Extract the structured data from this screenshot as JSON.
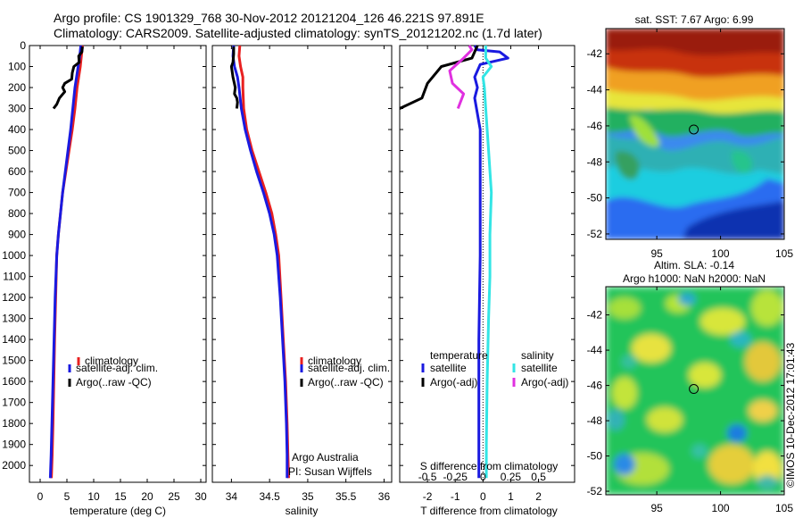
{
  "header": {
    "line1": "Argo profile: CS 1901329_768 30-Nov-2012 20121204_126 46.221S 97.891E",
    "line2": "Climatology: CARS2009. Satellite-adjusted climatology: synTS_20121202.nc (1.7d later)"
  },
  "colors": {
    "climatology": "#e82020",
    "satellite": "#1a1ae0",
    "argo": "#000000",
    "sal_satellite": "#33e5e5",
    "sal_argo": "#e030e0"
  },
  "chart_data": [
    {
      "type": "line",
      "id": "temperature",
      "xlabel": "temperature (deg C)",
      "ylabel": "",
      "xlim": [
        -2,
        31
      ],
      "ylim": [
        2080,
        0
      ],
      "xticks": [
        0,
        5,
        10,
        15,
        20,
        25,
        30
      ],
      "xtick_labels": [
        "0",
        "5",
        "10",
        "15",
        "20",
        "25",
        "30"
      ],
      "yticks": [
        0,
        100,
        200,
        300,
        400,
        500,
        600,
        700,
        800,
        900,
        1000,
        1100,
        1200,
        1300,
        1400,
        1500,
        1600,
        1700,
        1800,
        1900,
        2000
      ],
      "ytick_labels": [
        "0",
        "100",
        "200",
        "300",
        "400",
        "500",
        "600",
        "700",
        "800",
        "900",
        "1000",
        "1100",
        "1200",
        "1300",
        "1400",
        "1500",
        "1600",
        "1700",
        "1800",
        "1900",
        "2000"
      ],
      "legend": [
        "climatology",
        "satellite-adj. clim.",
        "Argo(..raw -QC)"
      ],
      "series": [
        {
          "name": "climatology",
          "color_key": "climatology",
          "x": [
            7.9,
            7.7,
            7.5,
            7.2,
            6.9,
            6.5,
            6.0,
            5.4,
            4.8,
            4.2,
            3.8,
            3.4,
            3.1,
            2.9,
            2.7,
            2.55,
            2.4,
            2.25,
            2.1
          ],
          "depth": [
            0,
            50,
            100,
            150,
            200,
            300,
            400,
            500,
            600,
            700,
            800,
            900,
            1000,
            1200,
            1400,
            1600,
            1800,
            1950,
            2060
          ]
        },
        {
          "name": "satellite-adj. clim.",
          "color_key": "satellite",
          "x": [
            7.6,
            7.4,
            7.1,
            6.8,
            6.5,
            6.1,
            5.7,
            5.2,
            4.7,
            4.2,
            3.8,
            3.4,
            3.1,
            2.8,
            2.6,
            2.4,
            2.2,
            2.05,
            1.9
          ],
          "depth": [
            0,
            50,
            100,
            150,
            200,
            300,
            400,
            500,
            600,
            700,
            800,
            900,
            1000,
            1200,
            1400,
            1600,
            1800,
            1950,
            2060
          ]
        },
        {
          "name": "Argo(..raw -QC)",
          "color_key": "argo",
          "x": [
            7.9,
            7.8,
            7.2,
            7.3,
            6.3,
            6.0,
            5.9,
            4.6,
            4.2,
            4.6,
            3.6,
            3.1,
            2.5
          ],
          "depth": [
            5,
            30,
            50,
            80,
            100,
            130,
            160,
            180,
            200,
            220,
            250,
            280,
            300
          ]
        }
      ],
      "annotations": []
    },
    {
      "type": "line",
      "id": "salinity",
      "xlabel": "salinity",
      "ylabel": "",
      "xlim": [
        33.75,
        36.1
      ],
      "ylim": [
        2080,
        0
      ],
      "xticks": [
        34,
        34.5,
        35,
        35.5,
        36
      ],
      "xtick_labels": [
        "34",
        "34.5",
        "35",
        "35.5",
        "36"
      ],
      "legend": [
        "climatology",
        "satellite-adj. clim.",
        "Argo(..raw -QC)"
      ],
      "series": [
        {
          "name": "climatology",
          "color_key": "climatology",
          "x": [
            34.11,
            34.1,
            34.12,
            34.15,
            34.15,
            34.16,
            34.2,
            34.27,
            34.36,
            34.45,
            34.53,
            34.58,
            34.62,
            34.65,
            34.68,
            34.71,
            34.73,
            34.74,
            34.75
          ],
          "depth": [
            0,
            50,
            100,
            150,
            200,
            300,
            400,
            500,
            600,
            700,
            800,
            900,
            1000,
            1200,
            1400,
            1600,
            1800,
            1950,
            2060
          ]
        },
        {
          "name": "satellite-adj. clim.",
          "color_key": "satellite",
          "x": [
            34.03,
            34.02,
            34.04,
            34.08,
            34.1,
            34.13,
            34.18,
            34.25,
            34.33,
            34.42,
            34.5,
            34.56,
            34.6,
            34.64,
            34.67,
            34.7,
            34.72,
            34.73,
            34.73
          ],
          "depth": [
            0,
            50,
            100,
            150,
            200,
            300,
            400,
            500,
            600,
            700,
            800,
            900,
            1000,
            1200,
            1400,
            1600,
            1800,
            1950,
            2060
          ]
        },
        {
          "name": "Argo(..raw -QC)",
          "color_key": "argo",
          "x": [
            34.03,
            34.03,
            34.02,
            34.0,
            34.02,
            34.05,
            34.04,
            34.07,
            34.08,
            34.07
          ],
          "depth": [
            5,
            40,
            80,
            100,
            150,
            200,
            230,
            250,
            270,
            300
          ]
        }
      ],
      "annotations": [
        "Argo Australia",
        "PI: Susan Wijffels"
      ]
    },
    {
      "type": "line",
      "id": "difference",
      "xlabel": "T difference from climatology",
      "top_xlabel": "S difference from climatology",
      "xlim": [
        -3,
        3.3
      ],
      "ylim": [
        2080,
        0
      ],
      "xticks": [
        -2,
        -1,
        0,
        1,
        2
      ],
      "xtick_labels": [
        "-2",
        "-1",
        "0",
        "1",
        "2"
      ],
      "sxtick_labels": [
        "-0.5",
        "-0.25",
        "0",
        "0.25",
        "0.5"
      ],
      "sxtick_positions": [
        -2,
        -1,
        0,
        1,
        2
      ],
      "legend_headers": [
        "temperature",
        "salinity"
      ],
      "legend": [
        "satellite",
        "Argo(-adj)",
        "satellite",
        "Argo(-adj)"
      ],
      "series": [
        {
          "name": "T satellite",
          "color_key": "satellite",
          "x": [
            -0.3,
            -0.2,
            0.6,
            0.9,
            -0.1,
            -0.3,
            -0.2,
            -0.3,
            -0.1,
            -0.1,
            -0.1,
            -0.15,
            -0.15,
            -0.15,
            -0.15
          ],
          "depth": [
            0,
            20,
            30,
            60,
            90,
            150,
            200,
            250,
            400,
            700,
            1000,
            1400,
            1700,
            2000,
            2060
          ]
        },
        {
          "name": "T Argo(-adj)",
          "color_key": "argo",
          "x": [
            -0.2,
            -0.3,
            -0.4,
            -1.5,
            -2.0,
            -2.2,
            -3.0
          ],
          "depth": [
            0,
            30,
            60,
            100,
            180,
            250,
            300
          ]
        },
        {
          "name": "S satellite",
          "color_key": "sal_satellite",
          "x": [
            0.1,
            0.1,
            0.1,
            0.3,
            0.0,
            0.05,
            0.1,
            0.2,
            0.3,
            0.25,
            0.25,
            0.2,
            0.15,
            0.12,
            0.12
          ],
          "depth": [
            0,
            30,
            60,
            100,
            150,
            200,
            300,
            500,
            700,
            900,
            1100,
            1300,
            1600,
            1900,
            2060
          ]
        },
        {
          "name": "S Argo(-adj)",
          "color_key": "sal_argo",
          "x": [
            -0.5,
            -0.4,
            -0.7,
            -1.2,
            -1.1,
            -0.7,
            -0.9
          ],
          "depth": [
            0,
            20,
            60,
            120,
            180,
            230,
            300
          ]
        }
      ],
      "dotted_zero": true
    },
    {
      "type": "heatmap",
      "id": "sst_map",
      "title": "sat. SST: 7.67 Argo: 6.99",
      "xlim": [
        91,
        105
      ],
      "ylim": [
        -52.3,
        -40.6
      ],
      "xticks": [
        95,
        100,
        105
      ],
      "xtick_labels": [
        "95",
        "100",
        "105"
      ],
      "yticks": [
        -42,
        -44,
        -46,
        -48,
        -50,
        -52
      ],
      "ytick_labels": [
        "-42",
        "-44",
        "-46",
        "-48",
        "-50",
        "-52"
      ],
      "marker": {
        "lon": 97.9,
        "lat": -46.2
      }
    },
    {
      "type": "heatmap",
      "id": "sla_map",
      "title1": "Altim. SLA: -0.14",
      "title2": "Argo h1000: NaN h2000: NaN",
      "xlim": [
        91,
        105
      ],
      "ylim": [
        -52.2,
        -40.4
      ],
      "xticks": [
        95,
        100,
        105
      ],
      "xtick_labels": [
        "95",
        "100",
        "105"
      ],
      "yticks": [
        -42,
        -44,
        -46,
        -48,
        -50,
        -52
      ],
      "ytick_labels": [
        "-42",
        "-44",
        "-46",
        "-48",
        "-50",
        "-52"
      ],
      "marker": {
        "lon": 97.9,
        "lat": -46.2
      }
    }
  ],
  "footer": {
    "credit": "©IMOS 10-Dec-2012 17:01:43"
  }
}
